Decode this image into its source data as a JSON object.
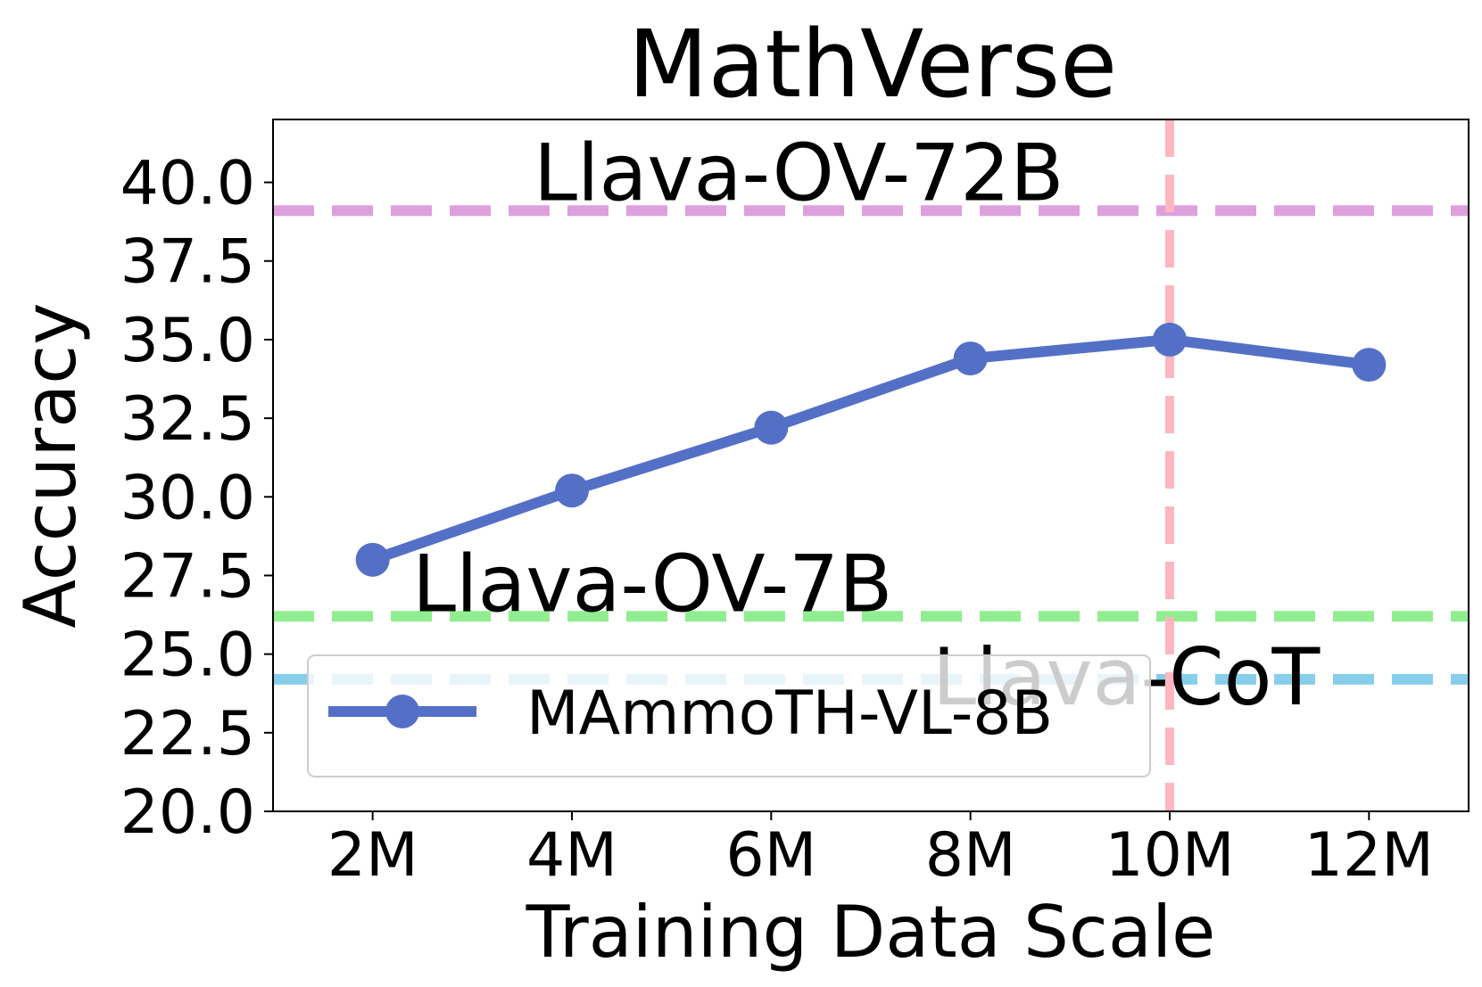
{
  "chart_data": {
    "type": "line",
    "title": "MathVerse",
    "xlabel": "Training Data Scale",
    "ylabel": "Accuracy",
    "x": [
      2,
      4,
      6,
      8,
      10,
      12
    ],
    "x_tick_labels": [
      "2M",
      "4M",
      "6M",
      "8M",
      "10M",
      "12M"
    ],
    "xlim": [
      1,
      13
    ],
    "ylim": [
      20,
      42
    ],
    "y_ticks": [
      20.0,
      22.5,
      25.0,
      27.5,
      30.0,
      32.5,
      35.0,
      37.5,
      40.0
    ],
    "y_tick_labels": [
      "20.0",
      "22.5",
      "25.0",
      "27.5",
      "30.0",
      "32.5",
      "35.0",
      "37.5",
      "40.0"
    ],
    "series": [
      {
        "name": "MAmmoTH-VL-8B",
        "color": "#5470c6",
        "values": [
          28.0,
          30.2,
          32.2,
          34.4,
          35.0,
          34.2
        ]
      }
    ],
    "reference_lines": [
      {
        "label": "Llava-OV-72B",
        "orientation": "horizontal",
        "value": 39.1,
        "color": "#dda0dd"
      },
      {
        "label": "Llava-OV-7B",
        "orientation": "horizontal",
        "value": 26.2,
        "color": "#90ee90"
      },
      {
        "label": "Llava-CoT",
        "orientation": "horizontal",
        "value": 24.2,
        "color": "#87ceeb"
      },
      {
        "label": "",
        "orientation": "vertical",
        "value": 10,
        "color": "#ffb6c1"
      }
    ],
    "legend": {
      "position": "lower-left",
      "entries": [
        "MAmmoTH-VL-8B"
      ]
    },
    "grid": false
  }
}
